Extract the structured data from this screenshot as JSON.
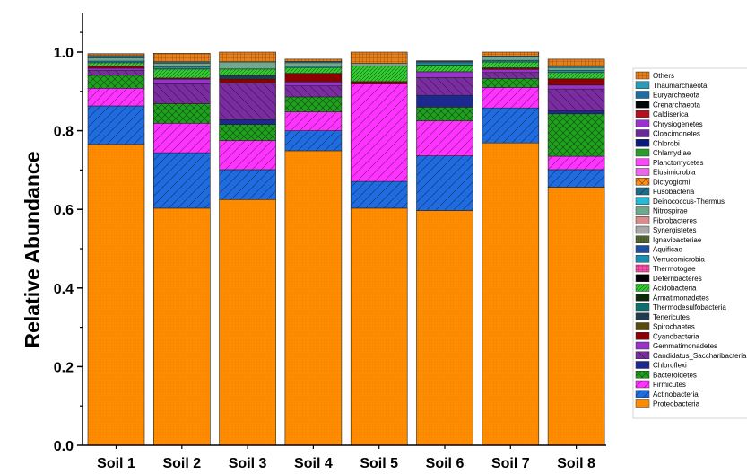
{
  "chart_data": {
    "type": "bar",
    "stacked": true,
    "ylabel": "Relative Abundance",
    "xlabel": "",
    "title": "",
    "ylim": [
      0,
      1.1
    ],
    "yticks": [
      0.0,
      0.2,
      0.4,
      0.6,
      0.8,
      1.0
    ],
    "ytick_labels": [
      "0.0",
      "0.2",
      "0.4",
      "0.6",
      "0.8",
      "1.0"
    ],
    "categories": [
      "Soil 1",
      "Soil 2",
      "Soil 3",
      "Soil 4",
      "Soil 5",
      "Soil 6",
      "Soil 7",
      "Soil 8"
    ],
    "legend_position": "right",
    "series": [
      {
        "name": "Proteobacteria",
        "color": "#ff8c00",
        "pattern": "dots",
        "values": [
          0.765,
          0.603,
          0.625,
          0.749,
          0.603,
          0.597,
          0.769,
          0.656
        ]
      },
      {
        "name": "Actinobacteria",
        "color": "#1f6be0",
        "pattern": "diag",
        "values": [
          0.098,
          0.141,
          0.076,
          0.051,
          0.068,
          0.139,
          0.089,
          0.045
        ]
      },
      {
        "name": "Firmicutes",
        "color": "#ff33ff",
        "pattern": "diag",
        "values": [
          0.045,
          0.075,
          0.074,
          0.048,
          0.248,
          0.089,
          0.052,
          0.034
        ]
      },
      {
        "name": "Bacteroidetes",
        "color": "#1fa01f",
        "pattern": "cross",
        "values": [
          0.033,
          0.05,
          0.041,
          0.038,
          0.0,
          0.035,
          0.023,
          0.108
        ]
      },
      {
        "name": "Chloroflexi",
        "color": "#1c2a8f",
        "pattern": "none",
        "values": [
          0.0,
          0.0,
          0.012,
          0.0,
          0.0,
          0.03,
          0.0,
          0.008
        ]
      },
      {
        "name": "Candidatus_Saccharibacteria",
        "color": "#7a2da0",
        "pattern": "hatch",
        "values": [
          0.012,
          0.05,
          0.093,
          0.028,
          0.0,
          0.045,
          0.015,
          0.055
        ]
      },
      {
        "name": "Gemmatimonadetes",
        "color": "#9932cc",
        "pattern": "none",
        "values": [
          0.006,
          0.012,
          0.0,
          0.01,
          0.0,
          0.015,
          0.008,
          0.01
        ]
      },
      {
        "name": "Cyanobacteria",
        "color": "#8b0000",
        "pattern": "none",
        "values": [
          0.006,
          0.003,
          0.01,
          0.022,
          0.006,
          0.0,
          0.004,
          0.016
        ]
      },
      {
        "name": "Spirochaetes",
        "color": "#5a4a10",
        "pattern": "none",
        "values": [
          0.0,
          0.0,
          0.0,
          0.0,
          0.0,
          0.0,
          0.0,
          0.0
        ]
      },
      {
        "name": "Tenericutes",
        "color": "#1f3b4d",
        "pattern": "none",
        "values": [
          0.0,
          0.0,
          0.01,
          0.0,
          0.0,
          0.0,
          0.0,
          0.0
        ]
      },
      {
        "name": "Thermodesulfobacteria",
        "color": "#0d6e6e",
        "pattern": "none",
        "values": [
          0.0,
          0.0,
          0.0,
          0.0,
          0.0,
          0.0,
          0.0,
          0.0
        ]
      },
      {
        "name": "Armatimonadetes",
        "color": "#0b2a0b",
        "pattern": "none",
        "values": [
          0.0,
          0.0,
          0.0,
          0.0,
          0.0,
          0.0,
          0.0,
          0.0
        ]
      },
      {
        "name": "Acidobacteria",
        "color": "#33cc33",
        "pattern": "dense",
        "values": [
          0.008,
          0.023,
          0.016,
          0.015,
          0.04,
          0.017,
          0.015,
          0.016
        ]
      },
      {
        "name": "Deferribacteres",
        "color": "#000000",
        "pattern": "none",
        "values": [
          0.0,
          0.0,
          0.0,
          0.0,
          0.0,
          0.0,
          0.0,
          0.0
        ]
      },
      {
        "name": "Thermotogae",
        "color": "#ff4da6",
        "pattern": "grid",
        "values": [
          0.0,
          0.0,
          0.0,
          0.0,
          0.0,
          0.0,
          0.0,
          0.0
        ]
      },
      {
        "name": "Verrucomicrobia",
        "color": "#1b8fb0",
        "pattern": "none",
        "values": [
          0.004,
          0.005,
          0.0,
          0.004,
          0.0,
          0.006,
          0.004,
          0.005
        ]
      },
      {
        "name": "Aquificae",
        "color": "#1e4fa0",
        "pattern": "none",
        "values": [
          0.0,
          0.0,
          0.0,
          0.0,
          0.0,
          0.0,
          0.0,
          0.0
        ]
      },
      {
        "name": "Ignavibacteriae",
        "color": "#556b2f",
        "pattern": "vert",
        "values": [
          0.0,
          0.0,
          0.0,
          0.0,
          0.0,
          0.0,
          0.0,
          0.0
        ]
      },
      {
        "name": "Synergistetes",
        "color": "#a9a9a9",
        "pattern": "dots",
        "values": [
          0.0,
          0.0,
          0.0,
          0.0,
          0.0,
          0.0,
          0.0,
          0.0
        ]
      },
      {
        "name": "Fibrobacteres",
        "color": "#d98c8c",
        "pattern": "none",
        "values": [
          0.0,
          0.0,
          0.0,
          0.0,
          0.0,
          0.0,
          0.0,
          0.0
        ]
      },
      {
        "name": "Nitrospirae",
        "color": "#6fa88f",
        "pattern": "none",
        "values": [
          0.008,
          0.01,
          0.018,
          0.008,
          0.006,
          0.0,
          0.008,
          0.008
        ]
      },
      {
        "name": "Deinococcus-Thermus",
        "color": "#29b8d6",
        "pattern": "none",
        "values": [
          0.003,
          0.0,
          0.0,
          0.0,
          0.0,
          0.0,
          0.0,
          0.0
        ]
      },
      {
        "name": "Fusobacteria",
        "color": "#1a6e8a",
        "pattern": "diag",
        "values": [
          0.0,
          0.0,
          0.0,
          0.0,
          0.0,
          0.0,
          0.0,
          0.0
        ]
      },
      {
        "name": "Dictyoglomi",
        "color": "#ff8c1a",
        "pattern": "cross",
        "values": [
          0.0,
          0.0,
          0.0,
          0.0,
          0.0,
          0.0,
          0.0,
          0.0
        ]
      },
      {
        "name": "Elusimicrobia",
        "color": "#ee66ee",
        "pattern": "none",
        "values": [
          0.0,
          0.0,
          0.0,
          0.0,
          0.0,
          0.0,
          0.0,
          0.0
        ]
      },
      {
        "name": "Planctomycetes",
        "color": "#ff44ff",
        "pattern": "none",
        "values": [
          0.0,
          0.0,
          0.0,
          0.0,
          0.0,
          0.0,
          0.0,
          0.0
        ]
      },
      {
        "name": "Chlamydiae",
        "color": "#2a9a2a",
        "pattern": "none",
        "values": [
          0.0,
          0.0,
          0.0,
          0.0,
          0.0,
          0.0,
          0.0,
          0.0
        ]
      },
      {
        "name": "Chlorobi",
        "color": "#0a1a7a",
        "pattern": "none",
        "values": [
          0.0,
          0.0,
          0.0,
          0.0,
          0.0,
          0.0,
          0.0,
          0.0
        ]
      },
      {
        "name": "Cloacimonetes",
        "color": "#6a2a9a",
        "pattern": "none",
        "values": [
          0.0,
          0.0,
          0.0,
          0.0,
          0.0,
          0.0,
          0.0,
          0.0
        ]
      },
      {
        "name": "Chrysiogenetes",
        "color": "#9932cc",
        "pattern": "none",
        "values": [
          0.0,
          0.0,
          0.0,
          0.0,
          0.0,
          0.0,
          0.0,
          0.0
        ]
      },
      {
        "name": "Caldiserica",
        "color": "#b01020",
        "pattern": "none",
        "values": [
          0.0,
          0.0,
          0.0,
          0.0,
          0.0,
          0.0,
          0.0,
          0.0
        ]
      },
      {
        "name": "Crenarchaeota",
        "color": "#050505",
        "pattern": "none",
        "values": [
          0.0,
          0.0,
          0.0,
          0.0,
          0.0,
          0.0,
          0.0,
          0.0
        ]
      },
      {
        "name": "Euryarchaeota",
        "color": "#1f6e9f",
        "pattern": "none",
        "values": [
          0.0,
          0.0,
          0.0,
          0.0,
          0.0,
          0.0,
          0.0,
          0.0
        ]
      },
      {
        "name": "Thaumarchaeota",
        "color": "#2a9ab8",
        "pattern": "none",
        "values": [
          0.003,
          0.003,
          0.0,
          0.003,
          0.0,
          0.003,
          0.003,
          0.003
        ]
      },
      {
        "name": "Others",
        "color": "#e8801a",
        "pattern": "grid",
        "values": [
          0.005,
          0.022,
          0.025,
          0.006,
          0.029,
          0.002,
          0.01,
          0.018
        ]
      }
    ]
  }
}
